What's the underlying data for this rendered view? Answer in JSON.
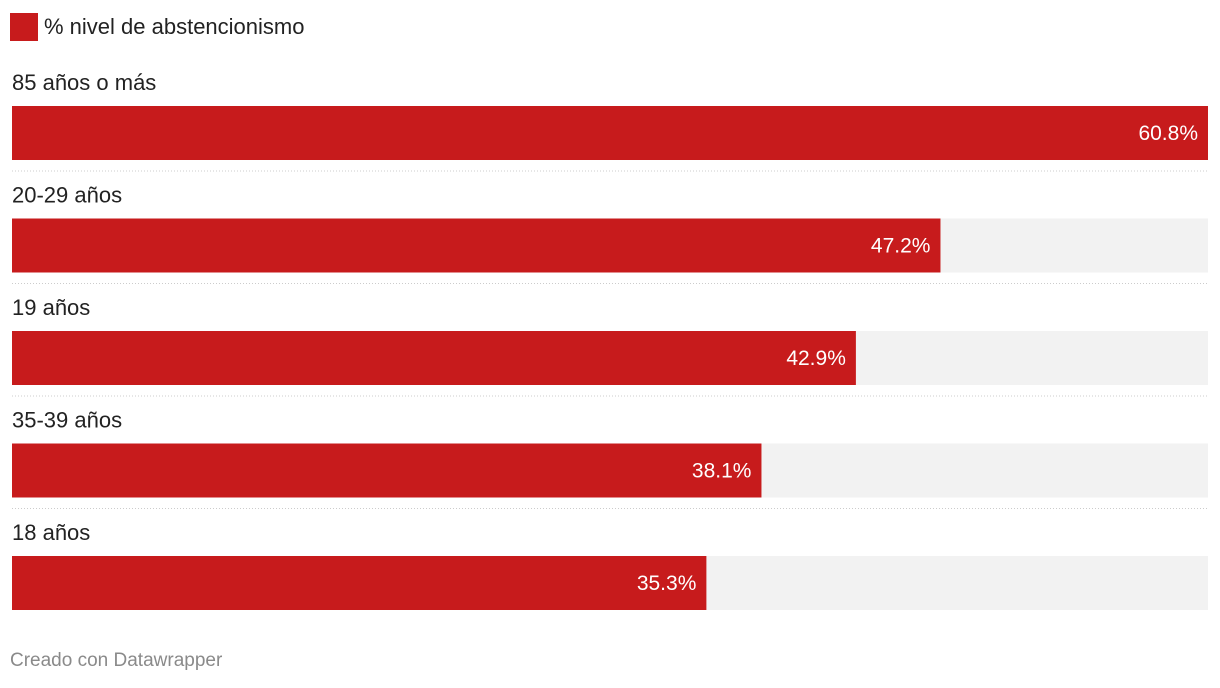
{
  "legend": {
    "label": "% nivel de abstencionismo",
    "color": "#c71b1c"
  },
  "colors": {
    "bar": "#c71b1c",
    "track": "#f2f2f2",
    "separator": "#cccccc"
  },
  "chart_data": {
    "type": "bar",
    "orientation": "horizontal",
    "categories": [
      "85 años o más",
      "20-29 años",
      "19 años",
      "35-39 años",
      "18 años"
    ],
    "values": [
      60.8,
      47.2,
      42.9,
      38.1,
      35.3
    ],
    "value_labels": [
      "60.8%",
      "47.2%",
      "42.9%",
      "38.1%",
      "35.3%"
    ],
    "series": [
      {
        "name": "% nivel de abstencionismo",
        "values": [
          60.8,
          47.2,
          42.9,
          38.1,
          35.3
        ]
      }
    ],
    "xlim": [
      0,
      60.8
    ],
    "grid": false,
    "legend_position": "top-left"
  },
  "footer": {
    "credit": "Creado con Datawrapper"
  }
}
